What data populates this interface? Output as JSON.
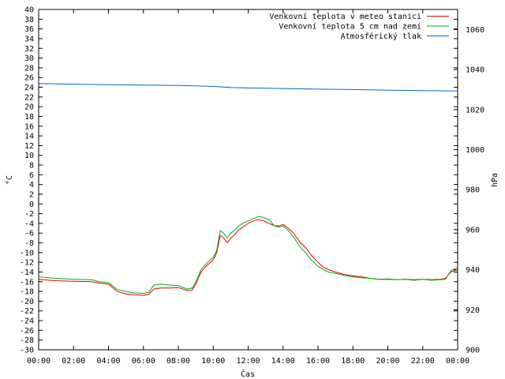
{
  "chart_data": {
    "type": "line",
    "title": "",
    "xlabel": "Čas",
    "ylabel": "°C",
    "y2label": "hPa",
    "xlim": [
      0,
      24
    ],
    "ylim": [
      -30,
      40
    ],
    "y2lim": [
      900,
      1070
    ],
    "x_ticks": [
      "00:00",
      "02:00",
      "04:00",
      "06:00",
      "08:00",
      "10:00",
      "12:00",
      "14:00",
      "16:00",
      "18:00",
      "20:00",
      "22:00",
      "00:00"
    ],
    "y_ticks": [
      40,
      38,
      36,
      34,
      32,
      30,
      28,
      26,
      24,
      22,
      20,
      18,
      16,
      14,
      12,
      10,
      8,
      6,
      4,
      2,
      0,
      -2,
      -4,
      -6,
      -8,
      -10,
      -12,
      -14,
      -16,
      -18,
      -20,
      -22,
      -24,
      -26,
      -28,
      -30
    ],
    "y2_ticks": [
      1060,
      1040,
      1020,
      1000,
      980,
      960,
      940,
      920,
      900
    ],
    "grid": false,
    "legend_position": "top-right",
    "series": [
      {
        "name": "Venkovní teplota v meteo stanici",
        "color": "#e00000",
        "axis": "y",
        "x": [
          0,
          1,
          2,
          3,
          3.5,
          4,
          4.5,
          5,
          5.5,
          6,
          6.3,
          6.6,
          7,
          7.5,
          8,
          8.5,
          8.8,
          9,
          9.3,
          9.6,
          10,
          10.2,
          10.4,
          10.6,
          10.8,
          11,
          11.2,
          11.4,
          11.6,
          11.8,
          12,
          12.3,
          12.6,
          12.9,
          13.2,
          13.5,
          13.8,
          14,
          14.3,
          14.6,
          15,
          15.3,
          15.6,
          16,
          16.3,
          16.6,
          17,
          17.5,
          18,
          18.5,
          19,
          19.5,
          20,
          20.5,
          21,
          21.5,
          22,
          22.5,
          23,
          23.3,
          23.6,
          24
        ],
        "y": [
          -15.5,
          -15.8,
          -15.9,
          -16,
          -16.3,
          -16.5,
          -18,
          -18.5,
          -18.7,
          -18.8,
          -18.6,
          -17.5,
          -17.3,
          -17.3,
          -17.2,
          -17.8,
          -17.7,
          -16.5,
          -14,
          -12.8,
          -11.5,
          -10,
          -6.5,
          -7,
          -8,
          -7,
          -6.5,
          -5.5,
          -5,
          -4.5,
          -4,
          -3.5,
          -3.2,
          -3.5,
          -4,
          -4.5,
          -4.5,
          -4.2,
          -5,
          -6,
          -8,
          -9,
          -10.5,
          -12,
          -13,
          -13.5,
          -14,
          -14.5,
          -14.8,
          -15,
          -15.3,
          -15.5,
          -15.5,
          -15.6,
          -15.5,
          -15.6,
          -15.5,
          -15.6,
          -15.5,
          -15.3,
          -14,
          -13.5
        ]
      },
      {
        "name": "Venkovní teplota 5 cm nad zemí",
        "color": "#00b000",
        "axis": "y",
        "x": [
          0,
          1,
          2,
          3,
          3.5,
          4,
          4.5,
          5,
          5.5,
          6,
          6.3,
          6.6,
          7,
          7.5,
          8,
          8.5,
          8.8,
          9,
          9.3,
          9.6,
          10,
          10.2,
          10.4,
          10.6,
          10.8,
          11,
          11.2,
          11.4,
          11.6,
          11.8,
          12,
          12.3,
          12.6,
          12.9,
          13.2,
          13.5,
          13.8,
          14,
          14.3,
          14.6,
          15,
          15.3,
          15.6,
          16,
          16.3,
          16.6,
          17,
          17.5,
          18,
          18.5,
          19,
          19.5,
          20,
          20.5,
          21,
          21.5,
          22,
          22.5,
          23,
          23.3,
          23.6,
          24
        ],
        "y": [
          -15,
          -15.3,
          -15.5,
          -15.6,
          -16,
          -16.2,
          -17.6,
          -18,
          -18.3,
          -18.4,
          -18.2,
          -16.7,
          -16.5,
          -16.7,
          -16.8,
          -17.5,
          -17.3,
          -16,
          -13.5,
          -12.3,
          -11,
          -9.5,
          -5.5,
          -6,
          -7,
          -6,
          -5.5,
          -4.8,
          -4.2,
          -3.8,
          -3.5,
          -3,
          -2.6,
          -2.8,
          -3.2,
          -4.5,
          -4.8,
          -4.5,
          -5.5,
          -6.8,
          -9,
          -10,
          -11.5,
          -12.8,
          -13.5,
          -14,
          -14.3,
          -14.7,
          -15,
          -15.2,
          -15.3,
          -15.5,
          -15.4,
          -15.6,
          -15.5,
          -15.7,
          -15.5,
          -15.7,
          -15.6,
          -15.5,
          -13.8,
          -13
        ]
      },
      {
        "name": "Atmosférický tlak",
        "color": "#0066cc",
        "axis": "y2",
        "x": [
          0,
          2,
          4,
          6,
          8,
          10,
          11,
          12,
          14,
          16,
          18,
          20,
          22,
          24
        ],
        "y": [
          1033,
          1032.7,
          1032.4,
          1032.2,
          1032,
          1031.6,
          1031,
          1030.8,
          1030.5,
          1030.2,
          1030,
          1029.7,
          1029.5,
          1029.3
        ]
      }
    ]
  }
}
